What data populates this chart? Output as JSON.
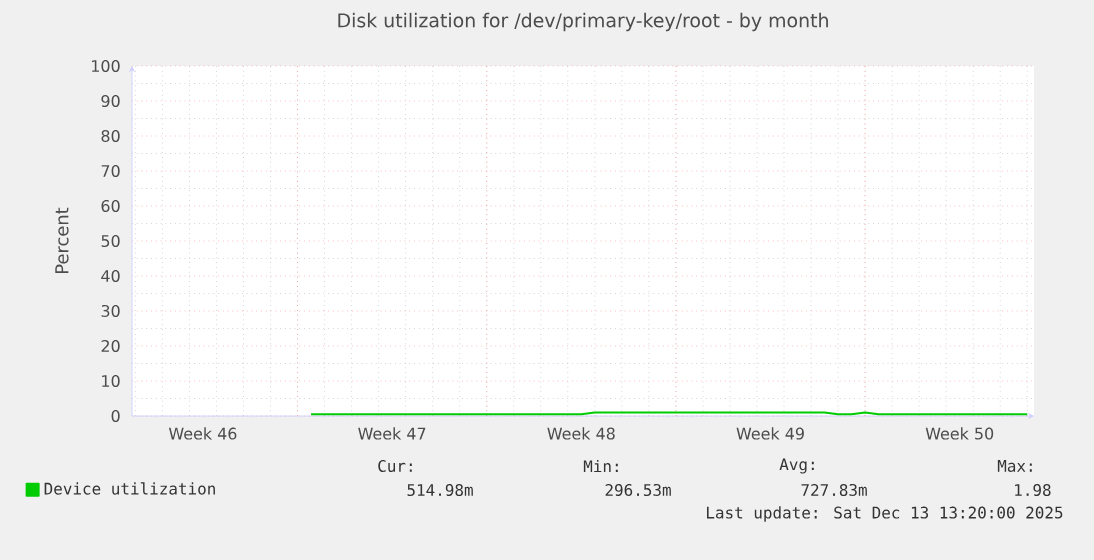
{
  "chart_data": {
    "type": "line",
    "title": "Disk utilization for /dev/primary-key/root - by month",
    "ylabel": "Percent",
    "categories": [
      null,
      null,
      null,
      null,
      null,
      "Week 46",
      null,
      null,
      null,
      null,
      null,
      null,
      null,
      null,
      null,
      null,
      null,
      null,
      null,
      "Week 47",
      null,
      null,
      null,
      null,
      null,
      null,
      null,
      null,
      null,
      null,
      null,
      null,
      null,
      "Week 48",
      null,
      null,
      null,
      null,
      null,
      null,
      null,
      null,
      null,
      null,
      null,
      null,
      null,
      "Week 49",
      null,
      null,
      null,
      null,
      null,
      null,
      null,
      null,
      null,
      null,
      null,
      null,
      null,
      "Week 50",
      null,
      null,
      null,
      null,
      null
    ],
    "series": [
      {
        "name": "Device utilization",
        "color": "#00cc00",
        "values": [
          null,
          null,
          null,
          null,
          null,
          null,
          null,
          null,
          null,
          null,
          null,
          null,
          null,
          0.5,
          0.5,
          0.5,
          0.5,
          0.5,
          0.5,
          0.5,
          0.5,
          0.5,
          0.5,
          0.5,
          0.5,
          0.5,
          0.5,
          0.5,
          0.5,
          0.5,
          0.5,
          0.5,
          0.5,
          0.5,
          1.0,
          1.0,
          1.0,
          1.0,
          1.0,
          1.0,
          1.0,
          1.0,
          1.0,
          1.0,
          1.0,
          1.0,
          1.0,
          1.0,
          1.0,
          1.0,
          1.0,
          1.0,
          0.5,
          0.5,
          1.0,
          0.5,
          0.5,
          0.5,
          0.5,
          0.5,
          0.5,
          0.5,
          0.5,
          0.5,
          0.5,
          0.5,
          0.5
        ]
      }
    ],
    "ylim": [
      0,
      100
    ],
    "yticks": [
      0,
      10,
      20,
      30,
      40,
      50,
      60,
      70,
      80,
      90,
      100
    ],
    "grid": true,
    "legend": "bottom left",
    "marker": "none",
    "line_style": "solid",
    "annotations": [
      "Cur:",
      "Min:",
      "Avg:",
      "Max:",
      "514.98m",
      "296.53m",
      "727.83m",
      "1.98",
      "Last update:  Sat Dec 13 13:20:00 2025"
    ]
  }
}
